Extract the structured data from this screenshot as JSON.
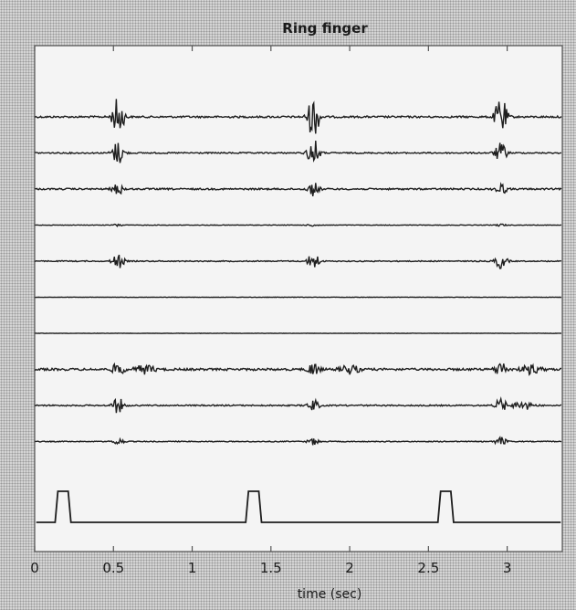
{
  "chart_data": {
    "type": "line",
    "title": "Ring finger",
    "xlabel": "time (sec)",
    "ylabel": "",
    "xlim": [
      0,
      3.35
    ],
    "xticks": [
      {
        "value": 0,
        "label": "0"
      },
      {
        "value": 0.5,
        "label": "0.5"
      },
      {
        "value": 1,
        "label": "1"
      },
      {
        "value": 1.5,
        "label": "1.5"
      },
      {
        "value": 2,
        "label": "2"
      },
      {
        "value": 2.5,
        "label": "2.5"
      },
      {
        "value": 3,
        "label": "3"
      }
    ],
    "grid": false,
    "legend": "none",
    "events": [
      0.53,
      1.77,
      2.96
    ],
    "pulse_train": {
      "onsets": [
        0.13,
        1.34,
        2.56
      ],
      "width": 0.1
    },
    "traces": [
      {
        "event_amplitudes": [
          0.9,
          1.0,
          0.95
        ],
        "noise": 0.25,
        "extra_bursts": []
      },
      {
        "event_amplitudes": [
          0.55,
          0.65,
          0.45
        ],
        "noise": 0.18,
        "extra_bursts": []
      },
      {
        "event_amplitudes": [
          0.25,
          0.3,
          0.25
        ],
        "noise": 0.22,
        "extra_bursts": []
      },
      {
        "event_amplitudes": [
          0.05,
          0.05,
          0.05
        ],
        "noise": 0.08,
        "extra_bursts": []
      },
      {
        "event_amplitudes": [
          0.35,
          0.4,
          0.35
        ],
        "noise": 0.14,
        "extra_bursts": []
      },
      {
        "event_amplitudes": [
          0,
          0,
          0
        ],
        "noise": 0.06,
        "extra_bursts": []
      },
      {
        "event_amplitudes": [
          0,
          0,
          0
        ],
        "noise": 0.05,
        "extra_bursts": []
      },
      {
        "event_amplitudes": [
          0.3,
          0.3,
          0.35
        ],
        "noise": 0.3,
        "extra_bursts": [
          0.7,
          2.0,
          3.15
        ]
      },
      {
        "event_amplitudes": [
          0.35,
          0.25,
          0.3
        ],
        "noise": 0.18,
        "extra_bursts": [
          3.1
        ]
      },
      {
        "event_amplitudes": [
          0.15,
          0.15,
          0.2
        ],
        "noise": 0.12,
        "extra_bursts": []
      }
    ],
    "colors": {
      "signal": "#1e1e1e",
      "axes": "#555555",
      "plot_bg": "#f4f4f4"
    }
  }
}
